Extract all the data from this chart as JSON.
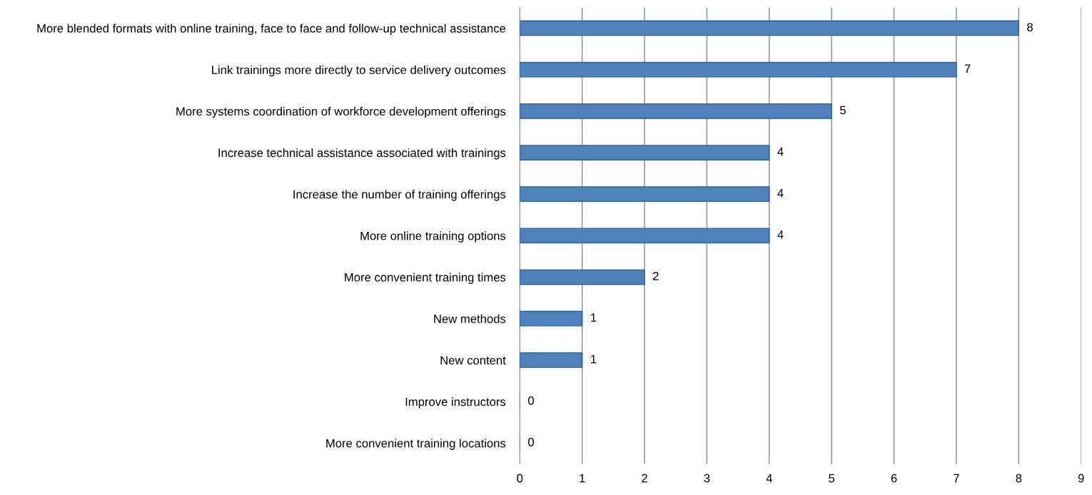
{
  "chart_data": {
    "type": "bar",
    "orientation": "horizontal",
    "categories": [
      "More blended formats with online training, face to face and follow-up technical assistance",
      "Link trainings more directly to service delivery outcomes",
      "More systems coordination of workforce development offerings",
      "Increase technical assistance associated with trainings",
      "Increase the number of training offerings",
      "More online training options",
      "More convenient training times",
      "New methods",
      "New content",
      "Improve instructors",
      "More convenient training locations"
    ],
    "values": [
      8,
      7,
      5,
      4,
      4,
      4,
      2,
      1,
      1,
      0,
      0
    ],
    "color": "#4f81bd",
    "xlim": [
      0,
      9
    ],
    "xticks": [
      0,
      1,
      2,
      3,
      4,
      5,
      6,
      7,
      8,
      9
    ],
    "grid": "x",
    "data_labels": true
  }
}
